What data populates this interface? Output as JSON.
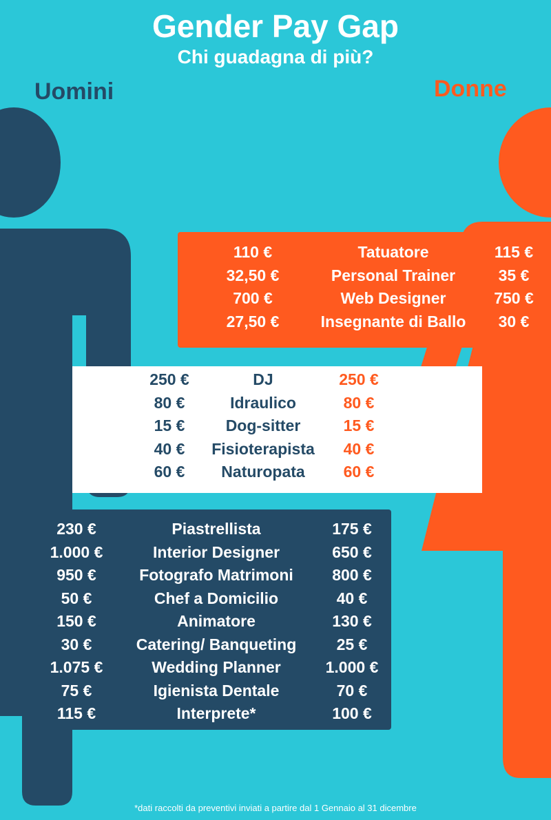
{
  "header": {
    "title": "Gender Pay Gap",
    "subtitle": "Chi guadagna di più?"
  },
  "labels": {
    "men": "Uomini",
    "women": "Donne"
  },
  "colors": {
    "background": "#2bc7d8",
    "men": "#244a66",
    "women": "#ff5a1f",
    "neutral": "#ffffff"
  },
  "sections": {
    "women_higher": [
      {
        "job": "Tatuatore",
        "men": "110 €",
        "women": "115 €"
      },
      {
        "job": "Personal Trainer",
        "men": "32,50 €",
        "women": "35 €"
      },
      {
        "job": "Web Designer",
        "men": "700 €",
        "women": "750 €"
      },
      {
        "job": "Insegnante di Ballo",
        "men": "27,50 €",
        "women": "30 €"
      }
    ],
    "equal": [
      {
        "job": "DJ",
        "men": "250 €",
        "women": "250 €"
      },
      {
        "job": "Idraulico",
        "men": "80 €",
        "women": "80 €"
      },
      {
        "job": "Dog-sitter",
        "men": "15 €",
        "women": "15 €"
      },
      {
        "job": "Fisioterapista",
        "men": "40 €",
        "women": "40 €"
      },
      {
        "job": "Naturopata",
        "men": "60 €",
        "women": "60 €"
      }
    ],
    "men_higher": [
      {
        "job": "Piastrellista",
        "men": "230 €",
        "women": "175 €"
      },
      {
        "job": "Interior Designer",
        "men": "1.000 €",
        "women": "650 €"
      },
      {
        "job": "Fotografo Matrimoni",
        "men": "950 €",
        "women": "800 €"
      },
      {
        "job": "Chef a Domicilio",
        "men": "50 €",
        "women": "40 €"
      },
      {
        "job": "Animatore",
        "men": "150 €",
        "women": "130 €"
      },
      {
        "job": "Catering/ Banqueting",
        "men": "30 €",
        "women": "25 €"
      },
      {
        "job": "Wedding Planner",
        "men": "1.075 €",
        "women": "1.000 €"
      },
      {
        "job": "Igienista Dentale",
        "men": "75 €",
        "women": "70 €"
      },
      {
        "job": "Interprete*",
        "men": "115 €",
        "women": "100 €"
      }
    ]
  },
  "footnote": "*dati raccolti da preventivi inviati a partire dal 1 Gennaio al 31 dicembre"
}
